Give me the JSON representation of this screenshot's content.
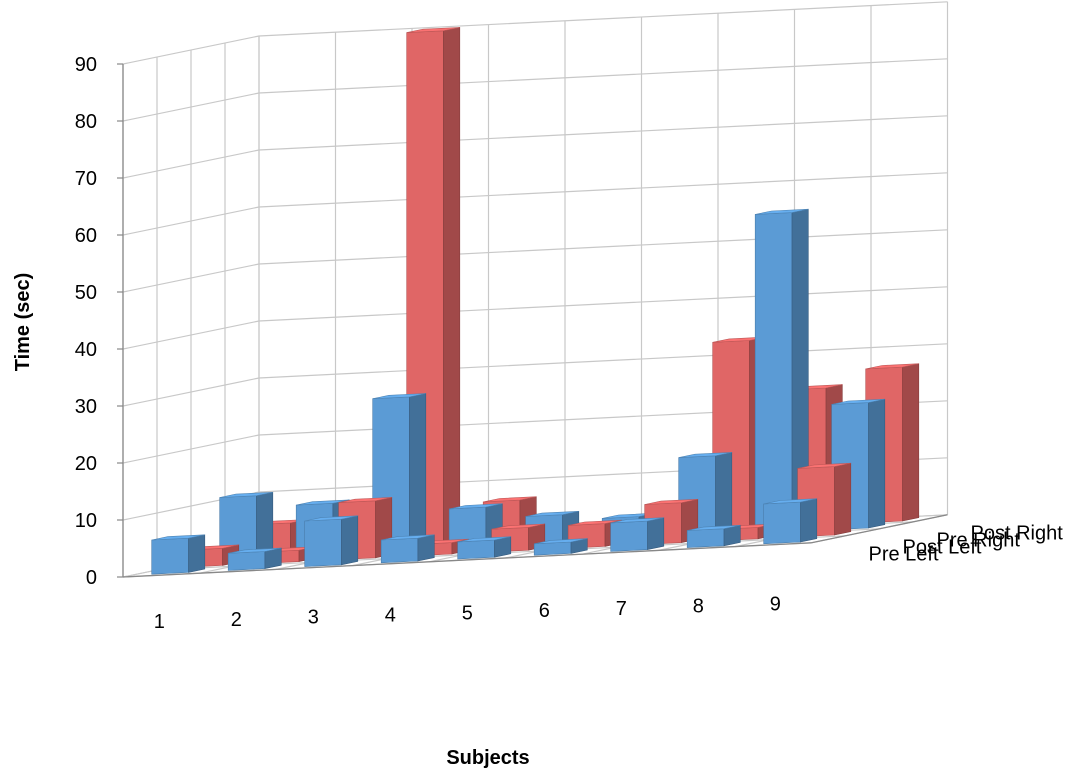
{
  "chart_data": {
    "type": "bar",
    "subtype": "3d-column",
    "title": "",
    "xlabel": "Subjects",
    "ylabel": "Time (sec)",
    "ylim": [
      0,
      90
    ],
    "yticks": [
      "0",
      "10",
      "20",
      "30",
      "40",
      "50",
      "60",
      "70",
      "80",
      "90"
    ],
    "categories": [
      "1",
      "2",
      "3",
      "4",
      "5",
      "6",
      "7",
      "8",
      "9"
    ],
    "series": [
      {
        "name": "Pre Left",
        "color": "#5b9bd5",
        "values": [
          6,
          3,
          8,
          4,
          3,
          2,
          5,
          3,
          7
        ]
      },
      {
        "name": "Post Left",
        "color": "#e06666",
        "values": [
          3,
          2,
          10,
          2,
          4,
          4,
          7,
          2,
          12
        ]
      },
      {
        "name": "Pre Right",
        "color": "#5b9bd5",
        "values": [
          11,
          9,
          27,
          7,
          5,
          4,
          14,
          56,
          22
        ]
      },
      {
        "name": "Post Right",
        "color": "#e06666",
        "values": [
          5,
          7,
          90,
          7,
          2,
          3,
          33,
          24,
          27
        ]
      }
    ],
    "grid": true,
    "legend": "depth axis labels at right"
  }
}
